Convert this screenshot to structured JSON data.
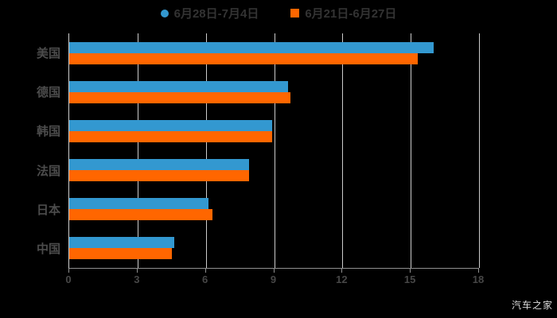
{
  "chart_data": {
    "type": "bar",
    "orientation": "horizontal",
    "title": "",
    "xlabel": "",
    "ylabel": "",
    "categories": [
      "美国",
      "德国",
      "韩国",
      "法国",
      "日本",
      "中国"
    ],
    "series": [
      {
        "name": "6月28日-7月4日",
        "color": "#3398d0",
        "marker": "circle",
        "values": [
          16.0,
          9.6,
          8.9,
          7.9,
          6.1,
          4.6
        ]
      },
      {
        "name": "6月21日-6月27日",
        "color": "#ff6600",
        "marker": "square",
        "values": [
          15.3,
          9.7,
          8.9,
          7.9,
          6.3,
          4.5
        ]
      }
    ],
    "x_ticks": [
      0,
      3,
      6,
      9,
      12,
      15,
      18
    ],
    "xlim": [
      0,
      18
    ],
    "grid": true,
    "legend_position": "top-center"
  },
  "colors": {
    "background": "#000000",
    "gridline": "#cbcbcb",
    "axis_line": "#8f8f8f",
    "tick_label": "#474747",
    "category_label": "#4c4c4c",
    "legend_text": "#333333",
    "watermark_text": "#dcdcdc"
  },
  "watermark": {
    "text": "汽车之家"
  }
}
